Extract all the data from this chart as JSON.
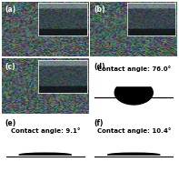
{
  "panels": [
    "(a)",
    "(b)",
    "(c)",
    "(d)",
    "(e)",
    "(f)"
  ],
  "contact_angles": {
    "d": "Contact angle: 76.0°",
    "e": "Contact angle: 9.1°",
    "f": "Contact angle: 10.4°"
  },
  "bg_color": "#ffffff",
  "border_color": "#888888",
  "label_fontsize": 5.5,
  "contact_fontsize": 5.0
}
